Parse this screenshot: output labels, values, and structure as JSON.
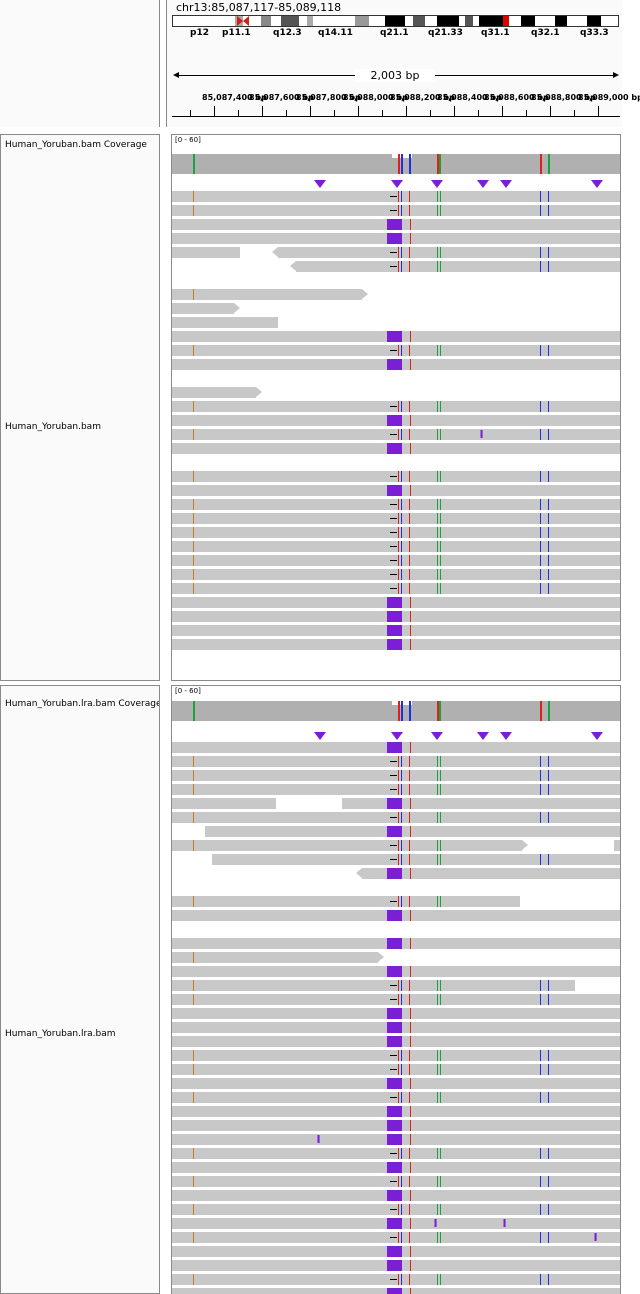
{
  "header": {
    "locus": "chr13:85,087,117-85,089,118",
    "span": "2,003 bp",
    "cytobands": [
      "p12",
      "p11.1",
      "q12.3",
      "q14.11",
      "q21.1",
      "q21.33",
      "q31.1",
      "q32.1",
      "q33.3"
    ],
    "ruler_ticks": [
      "85,087,400 bp",
      "85,087,600 bp",
      "85,087,800 bp",
      "85,088,000 bp",
      "85,088,200 bp",
      "85,088,400 bp",
      "85,088,600 bp",
      "85,088,800 bp",
      "85,089,000 bp"
    ]
  },
  "tracks": [
    {
      "coverage_name": "Human_Yoruban.bam Coverage",
      "alignment_name": "Human_Yoruban.bam",
      "data_range": "[0 - 60]"
    },
    {
      "coverage_name": "Human_Yoruban.lra.bam Coverage",
      "alignment_name": "Human_Yoruban.lra.bam",
      "data_range": "[0 - 60]"
    }
  ],
  "colors": {
    "read": "#c8c8c8",
    "insertion": "#7b1fd6",
    "coverage": "#b0b0b0",
    "mismatch_red": "#e0201b",
    "mismatch_blue": "#1d2fe0",
    "mismatch_green": "#1aa33c",
    "mismatch_orange": "#c77a2a"
  }
}
